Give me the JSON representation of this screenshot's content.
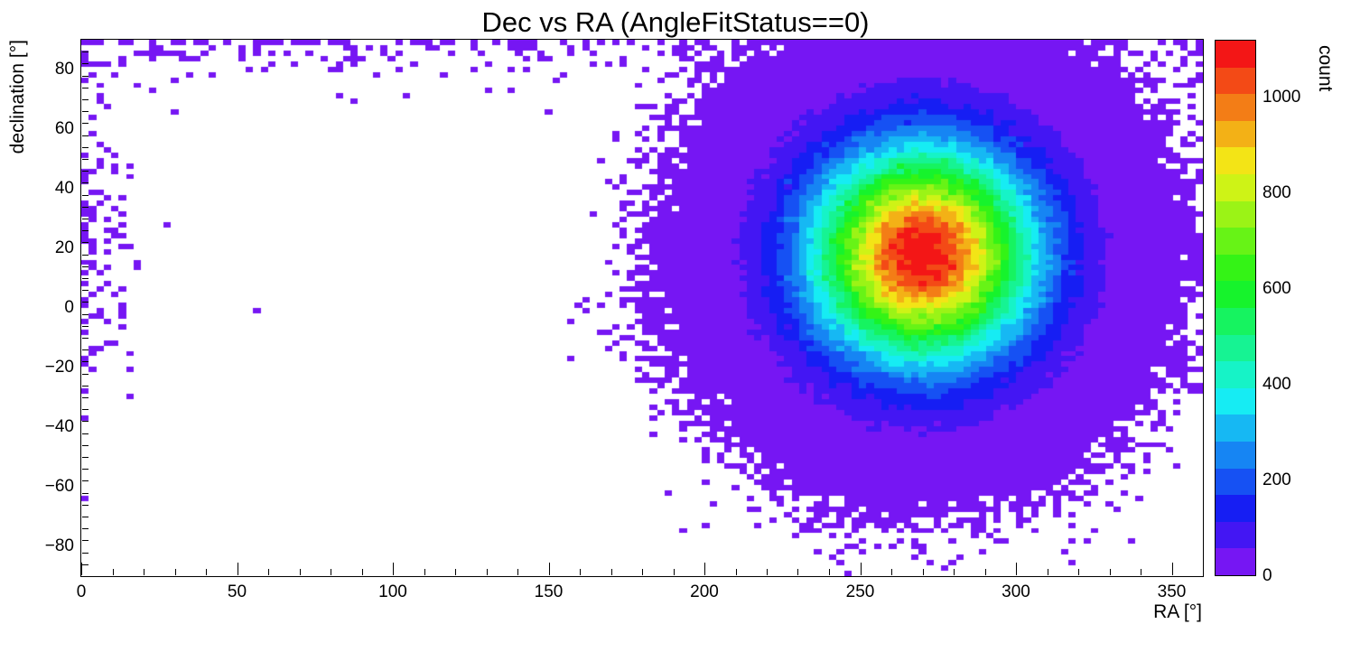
{
  "chart_data": {
    "type": "heatmap",
    "title": "Dec vs RA (AngleFitStatus==0)",
    "xlabel": "RA [°]",
    "ylabel": "declination [°]",
    "colorbar_label": "count",
    "xlim": [
      0,
      360
    ],
    "ylim": [
      -90,
      90
    ],
    "zlim": [
      0,
      1120
    ],
    "x_ticks": {
      "values": [
        0,
        50,
        100,
        150,
        200,
        250,
        300,
        350
      ],
      "labels": [
        "0",
        "50",
        "100",
        "150",
        "200",
        "250",
        "300",
        "350"
      ],
      "minor_step": 10
    },
    "y_ticks": {
      "values": [
        -80,
        -60,
        -40,
        -20,
        0,
        20,
        40,
        60,
        80
      ],
      "labels": [
        "−80",
        "−60",
        "−40",
        "−20",
        "0",
        "20",
        "40",
        "60",
        "80"
      ],
      "minor_step": 4
    },
    "z_ticks": {
      "values": [
        0,
        200,
        400,
        600,
        800,
        1000
      ],
      "labels": [
        "0",
        "200",
        "400",
        "600",
        "800",
        "1000"
      ]
    },
    "n_color_bands": 20,
    "palette": [
      "#7616F3",
      "#4316F3",
      "#161EF3",
      "#1651F3",
      "#1685F3",
      "#16B8F3",
      "#16ECF3",
      "#16F3C7",
      "#16F393",
      "#16F360",
      "#16F32C",
      "#34F316",
      "#67F316",
      "#9BF316",
      "#CEF316",
      "#F3E416",
      "#F3B116",
      "#F37D16",
      "#F34A16",
      "#F31616"
    ],
    "frame_color": "#000000",
    "background_color": "#ffffff",
    "model": {
      "description": "2D histogram: dense Gaussian clump centred near RA 270°, Dec +18° peaking around 1120 counts/bin, surrounded by a broad sparse violet halo covering roughly RA 180–360° and Dec −70° to +90°, plus sparse scatter along the top edge (Dec ≳ 75°) at all RA and down the left edge near RA 0°.",
      "seed": 42,
      "bins_x": 150,
      "bins_y": 100,
      "peak_count": 1120,
      "center_ra": 270,
      "center_dec": 18,
      "sigma_ra": 24,
      "sigma_dec": 24,
      "polar_rate": 0.6,
      "polar_dec_scale": 6,
      "edge_rate": 0.7,
      "edge_ra_scale": 5,
      "edge_dec_scale": 35
    }
  }
}
